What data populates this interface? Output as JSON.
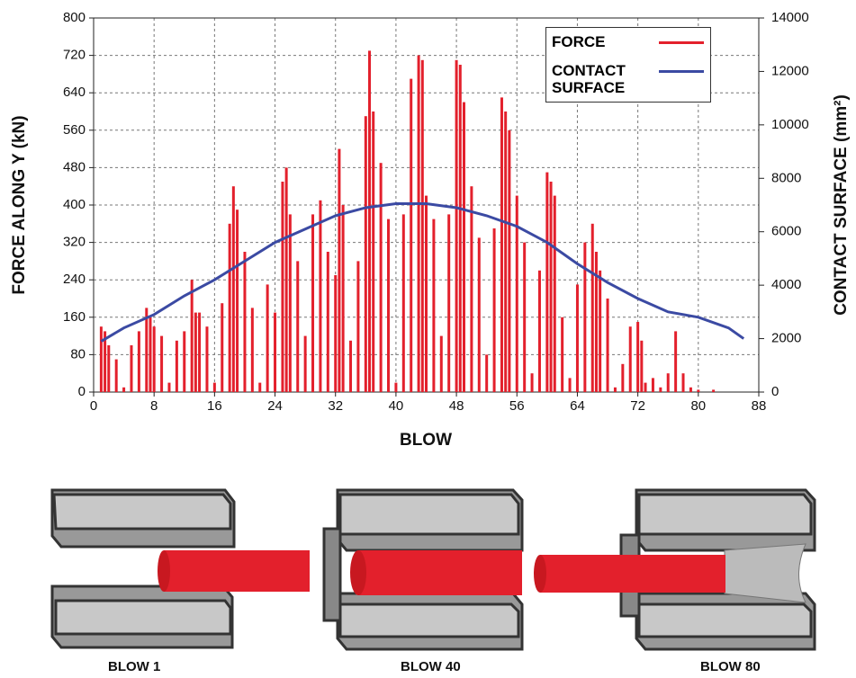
{
  "chart_data": {
    "type": "bar-line",
    "xlabel": "BLOW",
    "ylabel": "FORCE ALONG Y (kN)",
    "y2label": "CONTACT SURFACE (mm²)",
    "xlim": [
      0,
      88
    ],
    "xticks": [
      0,
      8,
      16,
      24,
      32,
      40,
      48,
      56,
      64,
      72,
      80,
      88
    ],
    "ylim": [
      0,
      800
    ],
    "yticks": [
      0,
      80,
      160,
      240,
      320,
      400,
      480,
      560,
      640,
      720,
      800
    ],
    "y2lim": [
      0,
      14000
    ],
    "y2ticks": [
      0,
      2000,
      4000,
      6000,
      8000,
      10000,
      12000,
      14000
    ],
    "grid": true,
    "legend": "upper right",
    "series": [
      {
        "name": "FORCE",
        "color": "#e3202c",
        "x": [
          1,
          1.5,
          2,
          3,
          4,
          5,
          6,
          7,
          7.5,
          8,
          9,
          10,
          11,
          12,
          13,
          13.5,
          14,
          15,
          16,
          17,
          18,
          18.5,
          19,
          20,
          21,
          22,
          23,
          24,
          25,
          25.5,
          26,
          27,
          28,
          29,
          30,
          31,
          32,
          32.5,
          33,
          34,
          35,
          36,
          36.5,
          37,
          38,
          39,
          40,
          41,
          42,
          43,
          43.5,
          44,
          45,
          46,
          47,
          48,
          48.5,
          49,
          50,
          51,
          52,
          53,
          54,
          54.5,
          55,
          56,
          57,
          58,
          59,
          60,
          60.5,
          61,
          62,
          63,
          64,
          65,
          66,
          66.5,
          67,
          68,
          69,
          70,
          71,
          72,
          72.5,
          73,
          74,
          75,
          76,
          77,
          78,
          79,
          80,
          82
        ],
        "values": [
          140,
          130,
          100,
          70,
          10,
          100,
          130,
          180,
          160,
          140,
          120,
          20,
          110,
          130,
          240,
          170,
          170,
          140,
          20,
          190,
          360,
          440,
          390,
          300,
          180,
          20,
          230,
          170,
          450,
          480,
          380,
          280,
          120,
          380,
          410,
          300,
          250,
          520,
          400,
          110,
          280,
          590,
          730,
          600,
          490,
          370,
          20,
          380,
          670,
          720,
          710,
          420,
          370,
          120,
          380,
          710,
          700,
          620,
          440,
          330,
          80,
          350,
          630,
          600,
          560,
          420,
          320,
          40,
          260,
          470,
          450,
          420,
          160,
          30,
          230,
          320,
          360,
          300,
          260,
          200,
          10,
          60,
          140,
          150,
          110,
          20,
          30,
          10,
          40,
          130,
          40,
          10,
          5,
          5
        ]
      },
      {
        "name": "CONTACT SURFACE",
        "color": "#3b4aa3",
        "axis": "y2",
        "x": [
          1,
          4,
          8,
          12,
          16,
          20,
          24,
          28,
          32,
          36,
          40,
          44,
          48,
          52,
          56,
          60,
          64,
          68,
          72,
          76,
          80,
          84,
          86
        ],
        "values": [
          1900,
          2400,
          2900,
          3600,
          4200,
          4900,
          5600,
          6100,
          6600,
          6900,
          7050,
          7050,
          6900,
          6600,
          6200,
          5600,
          4800,
          4100,
          3500,
          3000,
          2800,
          2400,
          2000
        ]
      }
    ]
  },
  "illustrations": [
    {
      "label": "BLOW 1"
    },
    {
      "label": "BLOW 40"
    },
    {
      "label": "BLOW 80"
    }
  ]
}
